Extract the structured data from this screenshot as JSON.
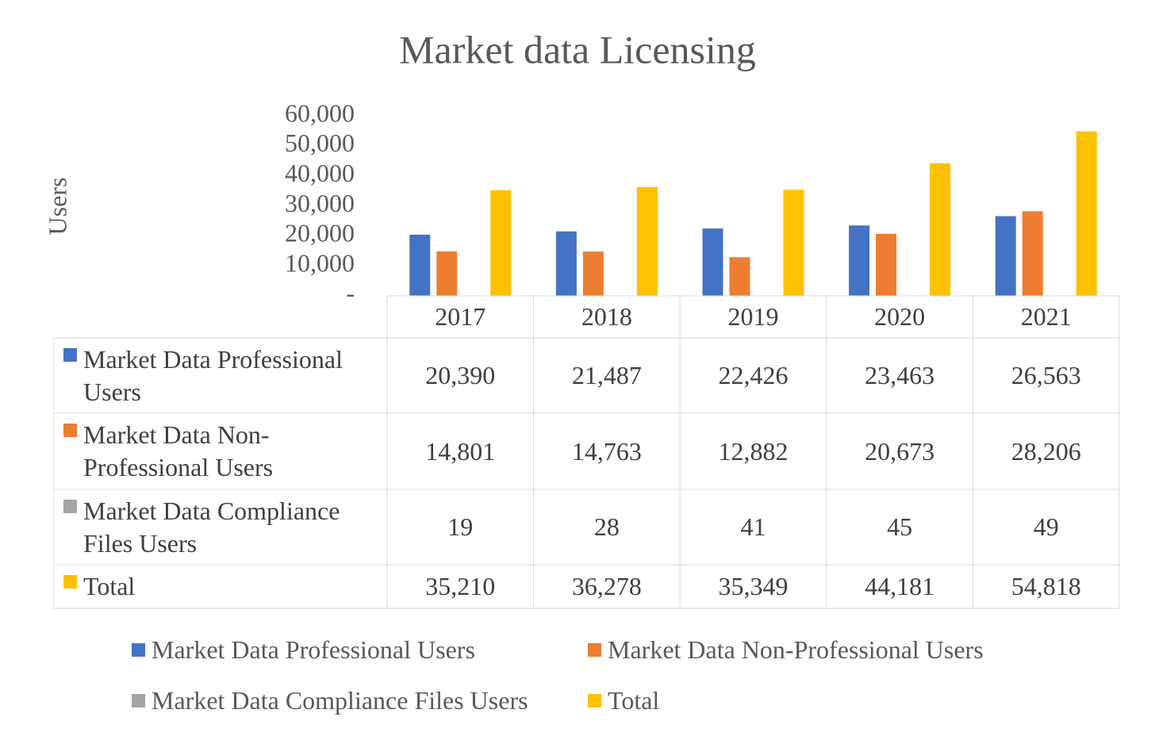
{
  "chart_data": {
    "type": "bar",
    "title": "Market data Licensing",
    "y_label": "Users",
    "categories": [
      "2017",
      "2018",
      "2019",
      "2020",
      "2021"
    ],
    "series": [
      {
        "name": "Market Data Professional Users",
        "color": "#4472c4",
        "values": [
          20390,
          21487,
          22426,
          23463,
          26563
        ],
        "value_labels": [
          "20,390",
          "21,487",
          "22,426",
          "23,463",
          "26,563"
        ]
      },
      {
        "name": "Market Data Non-Professional Users",
        "color": "#ed7d31",
        "values": [
          14801,
          14763,
          12882,
          20673,
          28206
        ],
        "value_labels": [
          "14,801",
          "14,763",
          "12,882",
          "20,673",
          "28,206"
        ]
      },
      {
        "name": "Market Data Compliance Files Users",
        "color": "#a5a5a5",
        "values": [
          19,
          28,
          41,
          45,
          49
        ]
      },
      {
        "name": "Total",
        "color": "#ffc000",
        "values": [
          35210,
          36278,
          35349,
          44181,
          54818
        ],
        "value_labels": [
          "35,210",
          "36,278",
          "35,349",
          "44,181",
          "54,818"
        ]
      }
    ],
    "ylim": [
      0,
      60000
    ],
    "yticks": [
      {
        "value": 0,
        "label": "-"
      },
      {
        "value": 10000,
        "label": "10,000"
      },
      {
        "value": 20000,
        "label": "20,000"
      },
      {
        "value": 30000,
        "label": "30,000"
      },
      {
        "value": 40000,
        "label": "40,000"
      },
      {
        "value": 50000,
        "label": "50,000"
      },
      {
        "value": 60000,
        "label": "60,000"
      }
    ],
    "grid": false,
    "data_table": true,
    "legend": "bottom"
  }
}
